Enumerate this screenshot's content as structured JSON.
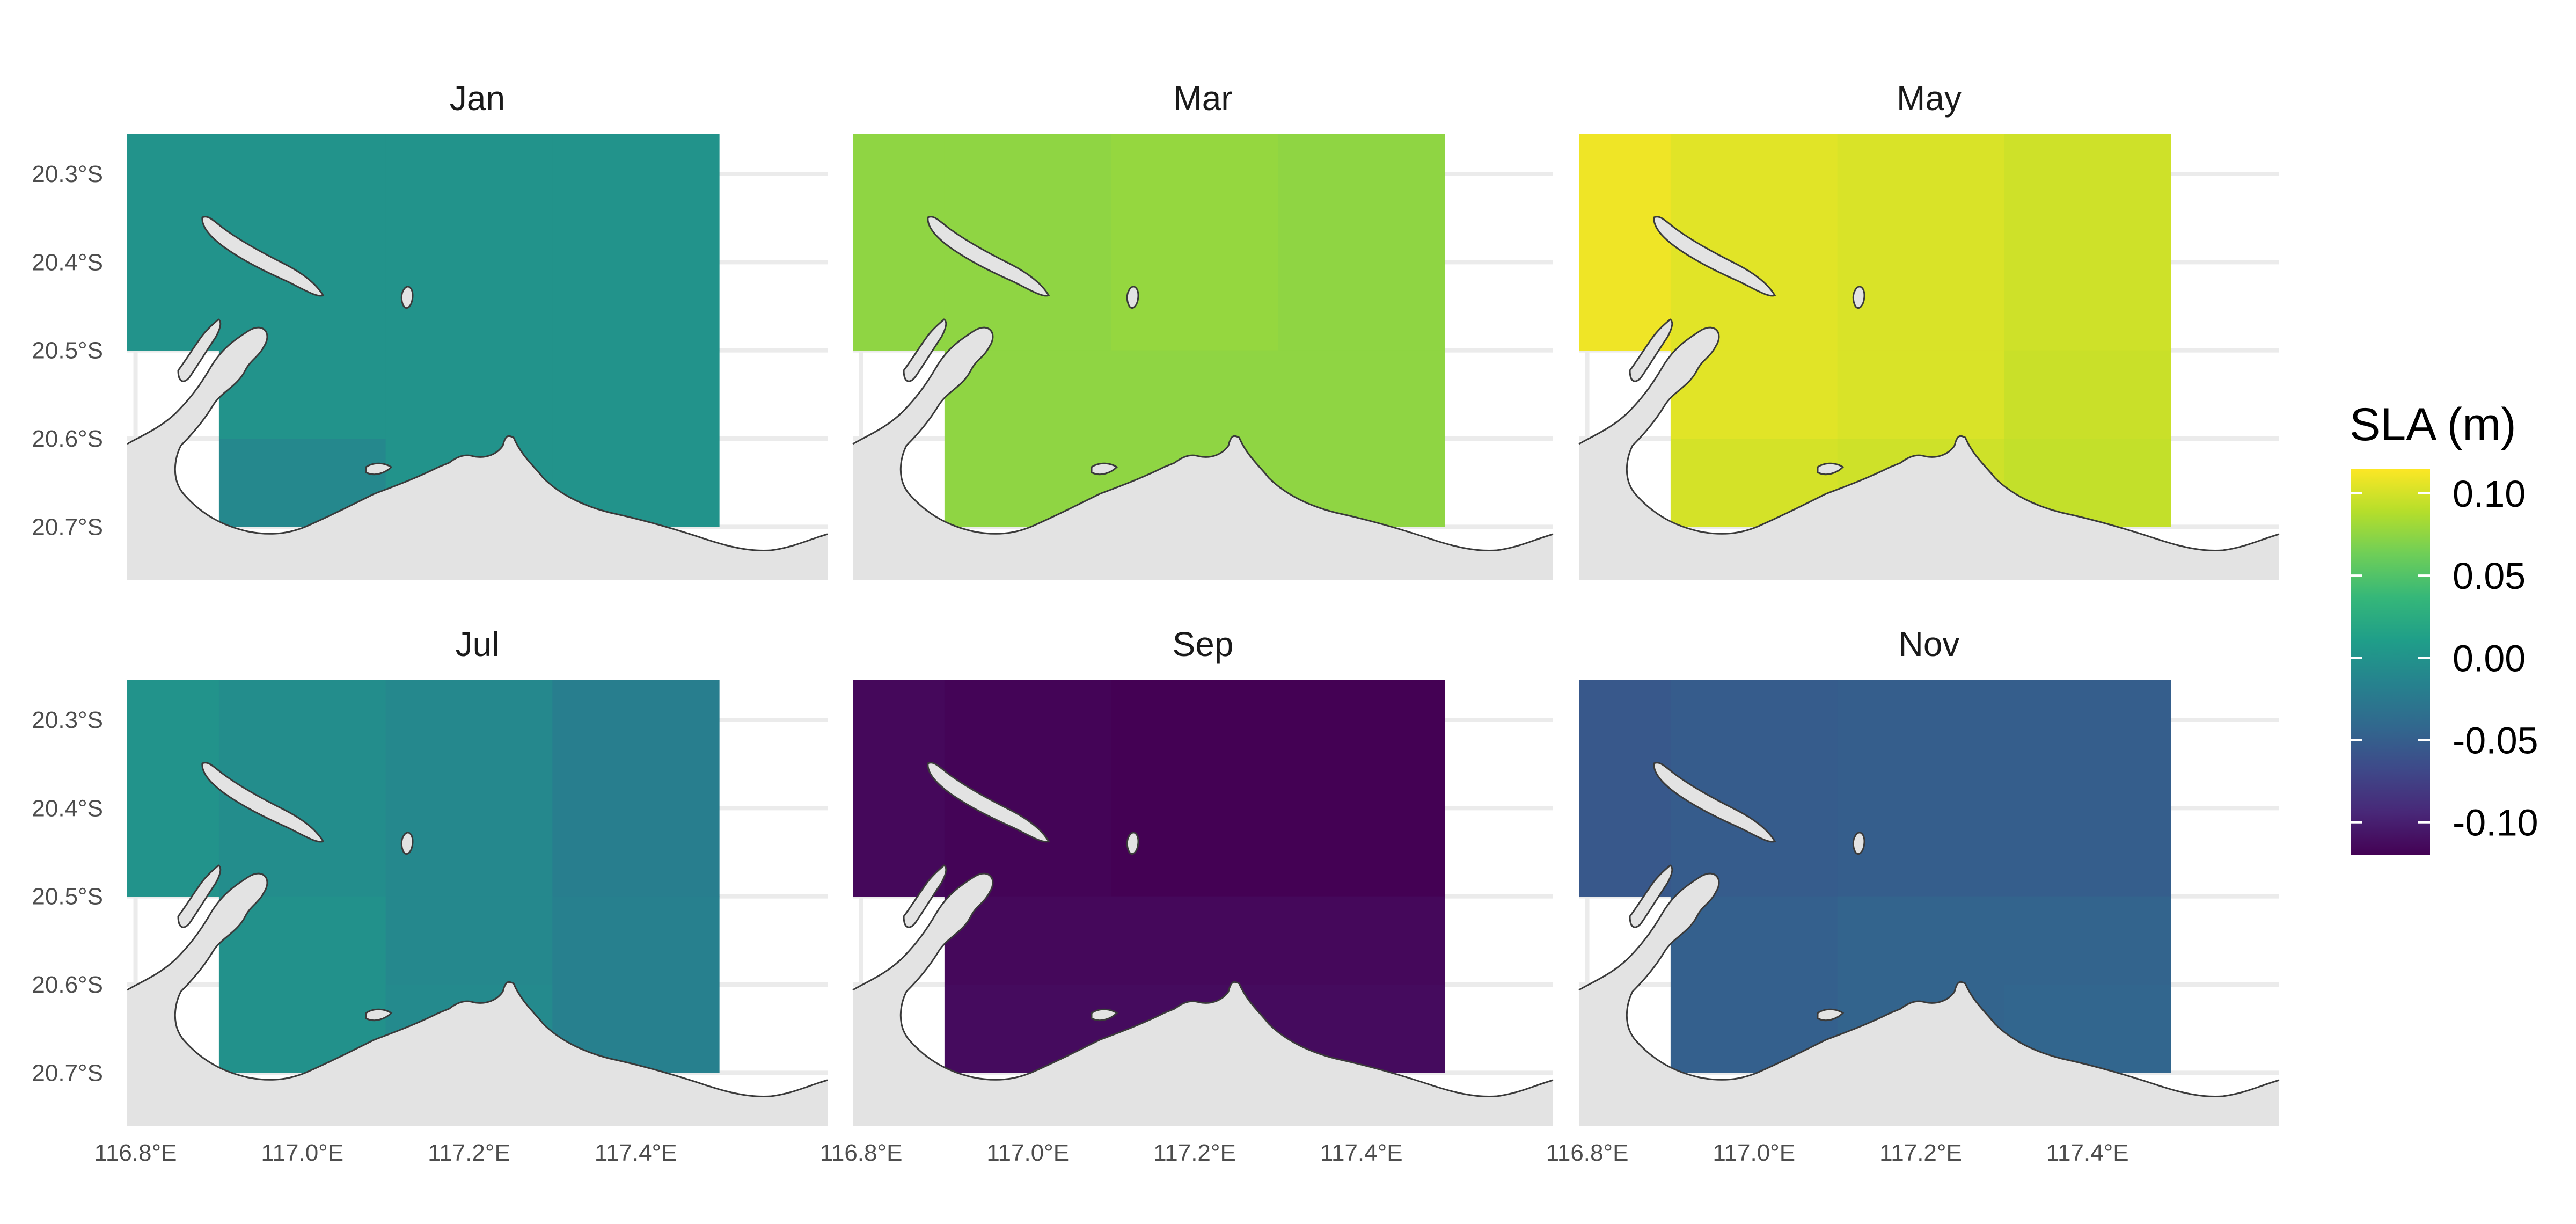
{
  "figure": {
    "facets": [
      {
        "title": "Jan",
        "cells": [
          [
            0.0,
            0.0,
            0.0,
            0.0
          ],
          [
            null,
            0.0,
            0.0,
            0.0
          ],
          [
            null,
            -0.01,
            0.0,
            0.0
          ]
        ]
      },
      {
        "title": "Mar",
        "cells": [
          [
            0.075,
            0.075,
            0.077,
            0.075
          ],
          [
            null,
            0.075,
            0.075,
            0.075
          ],
          [
            null,
            0.075,
            0.075,
            0.075
          ]
        ]
      },
      {
        "title": "May",
        "cells": [
          [
            0.11,
            0.105,
            0.102,
            0.098
          ],
          [
            null,
            0.105,
            0.102,
            0.096
          ],
          [
            null,
            0.1,
            0.098,
            0.094
          ]
        ]
      },
      {
        "title": "Jul",
        "cells": [
          [
            0.0,
            -0.005,
            -0.01,
            -0.02
          ],
          [
            null,
            -0.002,
            -0.01,
            -0.018
          ],
          [
            null,
            -0.002,
            -0.008,
            -0.018
          ]
        ]
      },
      {
        "title": "Sep",
        "cells": [
          [
            -0.115,
            -0.118,
            -0.12,
            -0.12
          ],
          [
            null,
            -0.115,
            -0.115,
            -0.115
          ],
          [
            null,
            -0.113,
            -0.113,
            -0.113
          ]
        ]
      },
      {
        "title": "Nov",
        "cells": [
          [
            -0.055,
            -0.052,
            -0.05,
            -0.05
          ],
          [
            null,
            -0.048,
            -0.045,
            -0.045
          ],
          [
            null,
            -0.048,
            -0.045,
            -0.043
          ]
        ]
      }
    ],
    "x_ticks": [
      {
        "value": 116.8,
        "label": "116.8°E"
      },
      {
        "value": 117.0,
        "label": "117.0°E"
      },
      {
        "value": 117.2,
        "label": "117.2°E"
      },
      {
        "value": 117.4,
        "label": "117.4°E"
      }
    ],
    "y_ticks": [
      {
        "value": -20.3,
        "label": "20.3°S"
      },
      {
        "value": -20.4,
        "label": "20.4°S"
      },
      {
        "value": -20.5,
        "label": "20.5°S"
      },
      {
        "value": -20.6,
        "label": "20.6°S"
      },
      {
        "value": -20.7,
        "label": "20.7°S"
      }
    ],
    "lon_range": [
      116.79,
      117.63
    ],
    "lat_range": [
      -20.76,
      -20.255
    ],
    "grid": {
      "lon_edges": [
        116.7,
        116.9,
        117.1,
        117.3,
        117.5
      ],
      "lat_edges": [
        -20.25,
        -20.5,
        -20.6,
        -20.7
      ]
    },
    "legend": {
      "title": "SLA (m)",
      "min": -0.12,
      "max": 0.115,
      "ticks": [
        {
          "value": 0.1,
          "label": "0.10"
        },
        {
          "value": 0.05,
          "label": "0.05"
        },
        {
          "value": 0.0,
          "label": "0.00"
        },
        {
          "value": -0.05,
          "label": "-0.05"
        },
        {
          "value": -0.1,
          "label": "-0.10"
        }
      ]
    },
    "colors": {
      "land": "#e3e3e3",
      "coast": "#3a3a3a",
      "gridline": "#ebebeb",
      "viridis": [
        "#440154",
        "#482878",
        "#3e4989",
        "#31688e",
        "#26828e",
        "#1f9e89",
        "#35b779",
        "#6ece58",
        "#b5de2b",
        "#fde725"
      ]
    }
  }
}
